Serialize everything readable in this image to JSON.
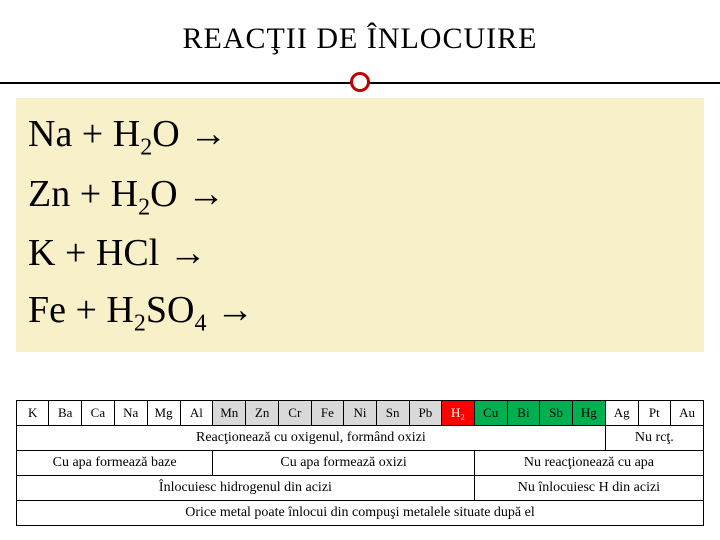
{
  "title": "REACŢII DE ÎNLOCUIRE",
  "reactions": [
    {
      "pre": "Na + H",
      "sub1": "2",
      "mid": "O → ",
      "sub2": "",
      "post": ""
    },
    {
      "pre": "Zn + H",
      "sub1": "2",
      "mid": "O → ",
      "sub2": "",
      "post": ""
    },
    {
      "pre": "K + HCl → ",
      "sub1": "",
      "mid": "",
      "sub2": "",
      "post": ""
    },
    {
      "pre": "Fe + H",
      "sub1": "2",
      "mid": "SO",
      "sub2": "4",
      "post": " → "
    }
  ],
  "elements": [
    {
      "sym": "K",
      "bg": "#ffffff"
    },
    {
      "sym": "Ba",
      "bg": "#ffffff"
    },
    {
      "sym": "Ca",
      "bg": "#ffffff"
    },
    {
      "sym": "Na",
      "bg": "#ffffff"
    },
    {
      "sym": "Mg",
      "bg": "#ffffff"
    },
    {
      "sym": "Al",
      "bg": "#ffffff"
    },
    {
      "sym": "Mn",
      "bg": "#d9d9d9"
    },
    {
      "sym": "Zn",
      "bg": "#d9d9d9"
    },
    {
      "sym": "Cr",
      "bg": "#d9d9d9"
    },
    {
      "sym": "Fe",
      "bg": "#d9d9d9"
    },
    {
      "sym": "Ni",
      "bg": "#d9d9d9"
    },
    {
      "sym": "Sn",
      "bg": "#d9d9d9"
    },
    {
      "sym": "Pb",
      "bg": "#d9d9d9"
    },
    {
      "sym": "H₂",
      "bg": "#ff0000",
      "color": "#ffffff"
    },
    {
      "sym": "Cu",
      "bg": "#00b050"
    },
    {
      "sym": "Bi",
      "bg": "#00b050"
    },
    {
      "sym": "Sb",
      "bg": "#00b050"
    },
    {
      "sym": "Hg",
      "bg": "#00b050"
    },
    {
      "sym": "Ag",
      "bg": "#ffffff"
    },
    {
      "sym": "Pt",
      "bg": "#ffffff"
    },
    {
      "sym": "Au",
      "bg": "#ffffff"
    }
  ],
  "row2": {
    "a": {
      "text": "Reacţionează cu oxigenul, formând oxizi",
      "span": 18
    },
    "b": {
      "text": "Nu rcţ.",
      "span": 3
    }
  },
  "row3": {
    "a": {
      "text": "Cu apa formează baze",
      "span": 6
    },
    "b": {
      "text": "Cu apa formează oxizi",
      "span": 8
    },
    "c": {
      "text": "Nu reacţionează cu apa",
      "span": 7
    }
  },
  "row4": {
    "a": {
      "text": "Înlocuiesc hidrogenul din acizi",
      "span": 14
    },
    "b": {
      "text": "Nu înlocuiesc H din acizi",
      "span": 7
    }
  },
  "row5": {
    "a": {
      "text": "Orice metal poate înlocui din compuşi metalele situate după el",
      "span": 21
    }
  }
}
